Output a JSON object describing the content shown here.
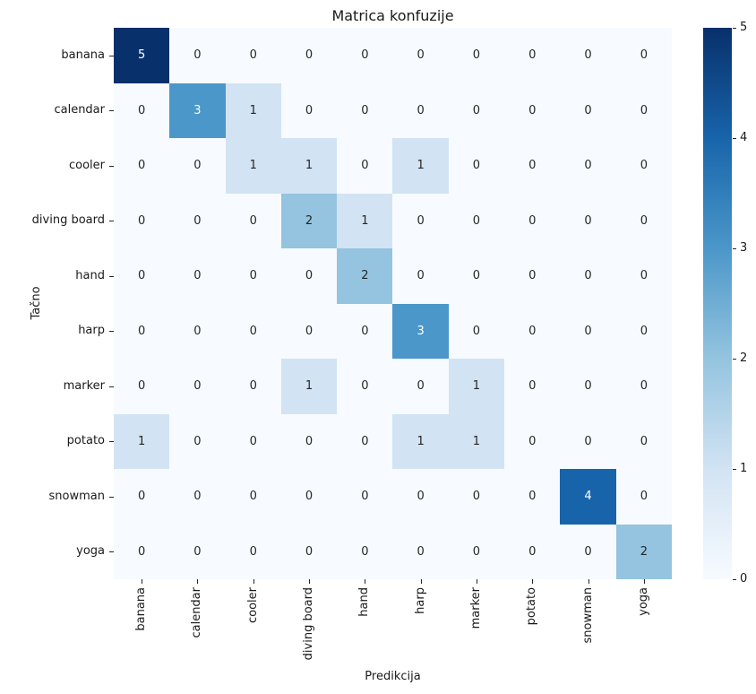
{
  "chart_data": {
    "type": "heatmap",
    "title": "Matrica konfuzije",
    "xlabel": "Predikcija",
    "ylabel": "Tačno",
    "categories": [
      "banana",
      "calendar",
      "cooler",
      "diving board",
      "hand",
      "harp",
      "marker",
      "potato",
      "snowman",
      "yoga"
    ],
    "matrix": [
      [
        5,
        0,
        0,
        0,
        0,
        0,
        0,
        0,
        0,
        0
      ],
      [
        0,
        3,
        1,
        0,
        0,
        0,
        0,
        0,
        0,
        0
      ],
      [
        0,
        0,
        1,
        1,
        0,
        1,
        0,
        0,
        0,
        0
      ],
      [
        0,
        0,
        0,
        2,
        1,
        0,
        0,
        0,
        0,
        0
      ],
      [
        0,
        0,
        0,
        0,
        2,
        0,
        0,
        0,
        0,
        0
      ],
      [
        0,
        0,
        0,
        0,
        0,
        3,
        0,
        0,
        0,
        0
      ],
      [
        0,
        0,
        0,
        1,
        0,
        0,
        1,
        0,
        0,
        0
      ],
      [
        1,
        0,
        0,
        0,
        0,
        1,
        1,
        0,
        0,
        0
      ],
      [
        0,
        0,
        0,
        0,
        0,
        0,
        0,
        0,
        4,
        0
      ],
      [
        0,
        0,
        0,
        0,
        0,
        0,
        0,
        0,
        0,
        2
      ]
    ],
    "vmin": 0,
    "vmax": 5,
    "colormap": "Blues",
    "colorbar_ticks": [
      0,
      1,
      2,
      3,
      4,
      5
    ],
    "legend_position": "right-colorbar",
    "grid": "off",
    "value_colors": {
      "0": "#f7fbff",
      "1": "#d2e3f3",
      "2": "#94c4df",
      "3": "#4b97c9",
      "4": "#1864aa",
      "5": "#08306b"
    },
    "annot_color_dark": "#262626",
    "annot_color_light": "#ffffff",
    "white_text_min_value": 3
  }
}
